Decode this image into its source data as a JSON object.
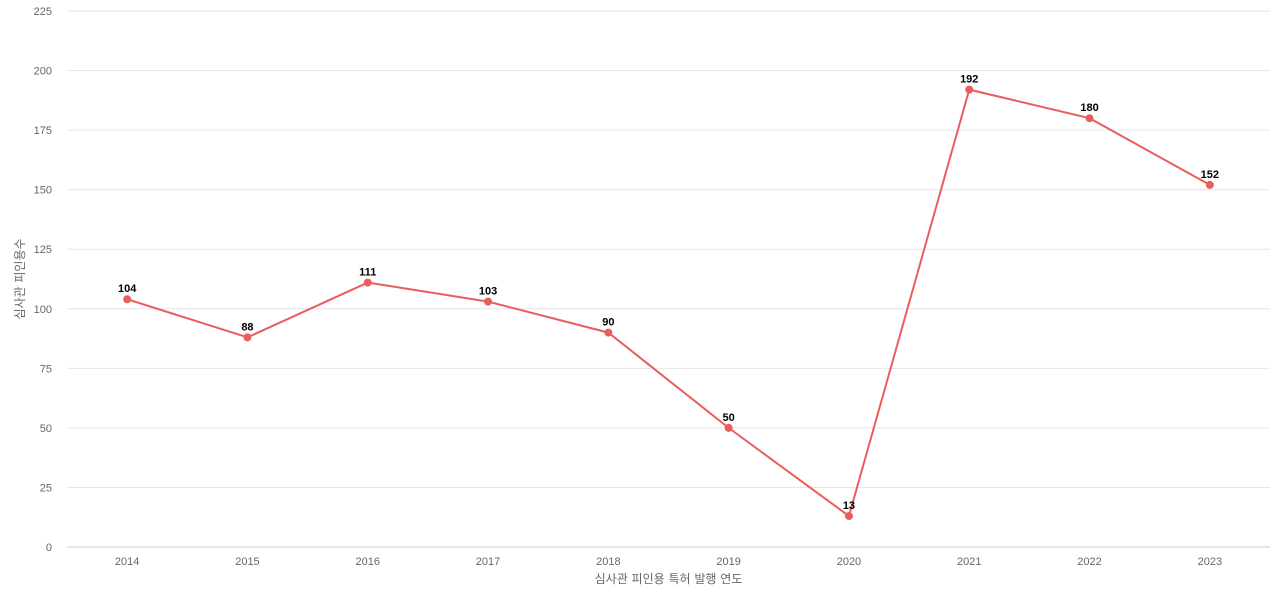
{
  "chart_data": {
    "type": "line",
    "title": "",
    "xlabel": "심사관 피인용 특허 발행 연도",
    "ylabel": "심사관 피인용수",
    "categories": [
      "2014",
      "2015",
      "2016",
      "2017",
      "2018",
      "2019",
      "2020",
      "2021",
      "2022",
      "2023"
    ],
    "series": [
      {
        "values": [
          104,
          88,
          111,
          103,
          90,
          50,
          13,
          192,
          180,
          152
        ],
        "color": "#e95d5d"
      }
    ],
    "ylim": [
      0,
      225
    ],
    "yticks": [
      0,
      25,
      50,
      75,
      100,
      125,
      150,
      175,
      200,
      225
    ],
    "grid": true,
    "legend": "none",
    "data_labels": true
  }
}
